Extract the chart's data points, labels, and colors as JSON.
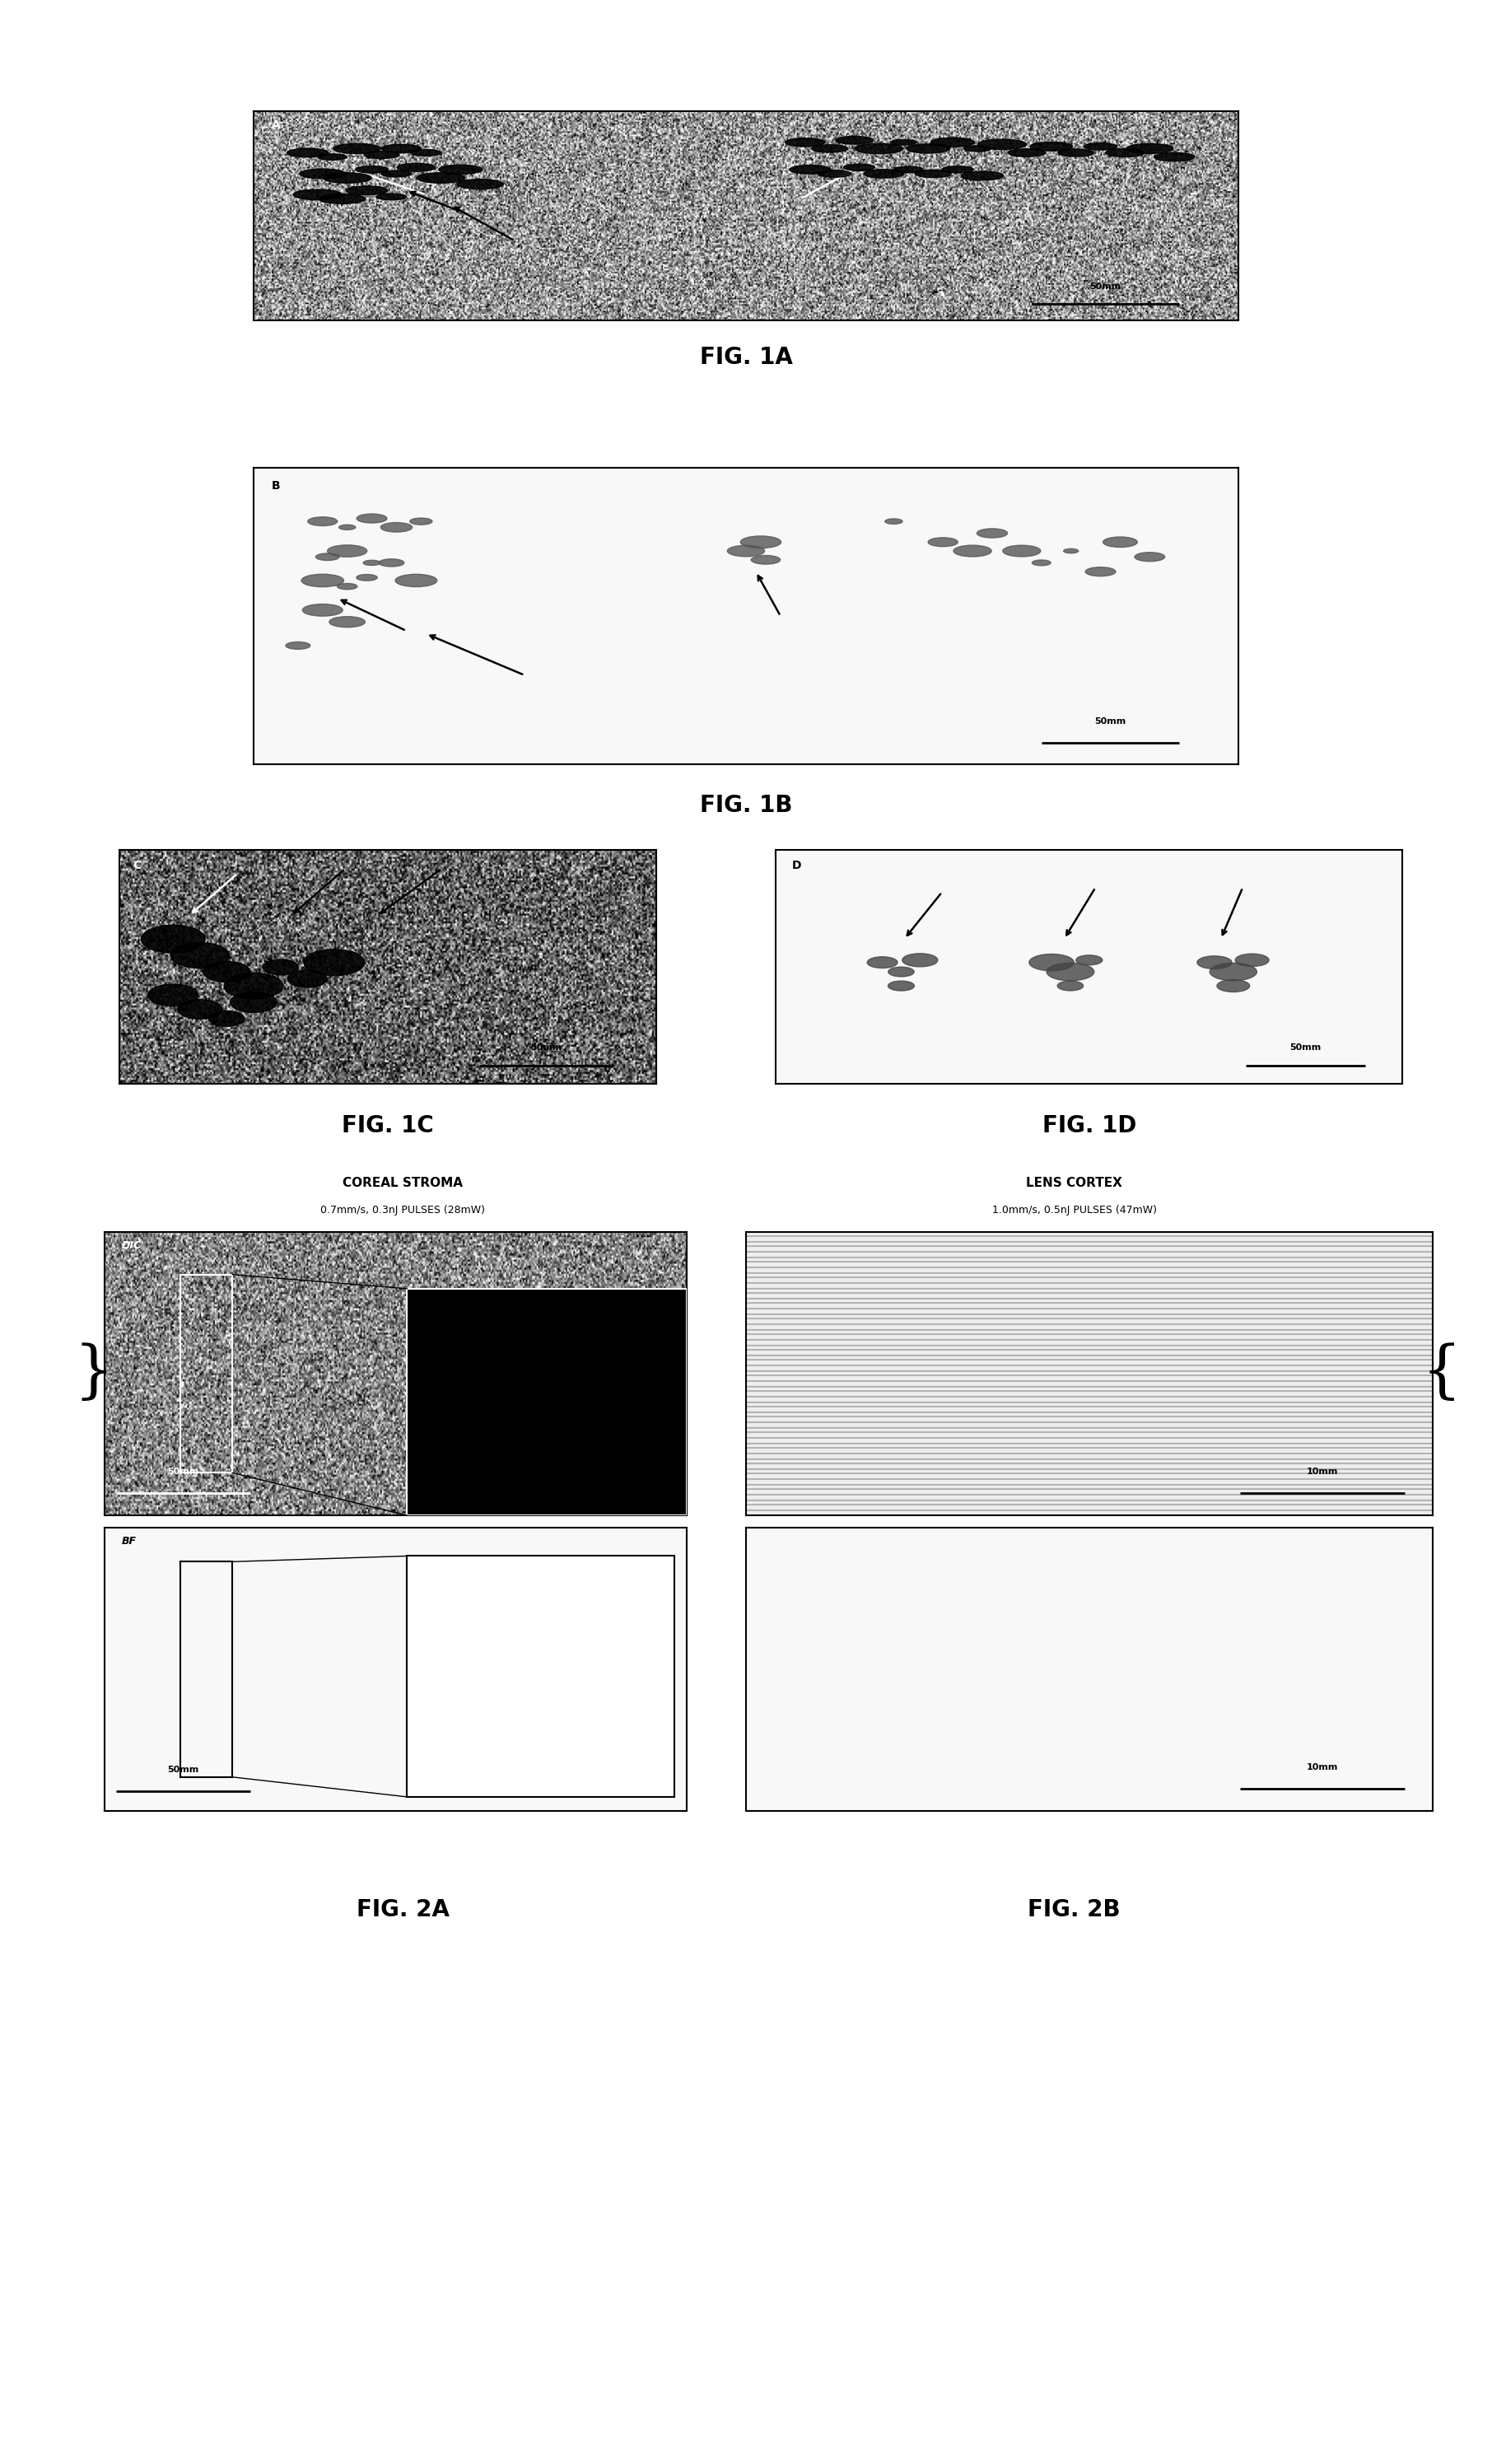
{
  "background_color": "#ffffff",
  "panel_labels": {
    "1A": "FIG. 1A",
    "1B": "FIG. 1B",
    "1C": "FIG. 1C",
    "1D": "FIG. 1D",
    "2A": "FIG. 2A",
    "2B": "FIG. 2B"
  },
  "fig2A_title1": "COREAL STROMA",
  "fig2A_title2": "0.7mm/s, 0.3nJ PULSES (28mW)",
  "fig2B_title1": "LENS CORTEX",
  "fig2B_title2": "1.0mm/s, 0.5nJ PULSES (47mW)",
  "scale_bar_50": "50mm",
  "scale_bar_10": "10mm",
  "label_DIC": "DIC",
  "label_BF": "BF"
}
